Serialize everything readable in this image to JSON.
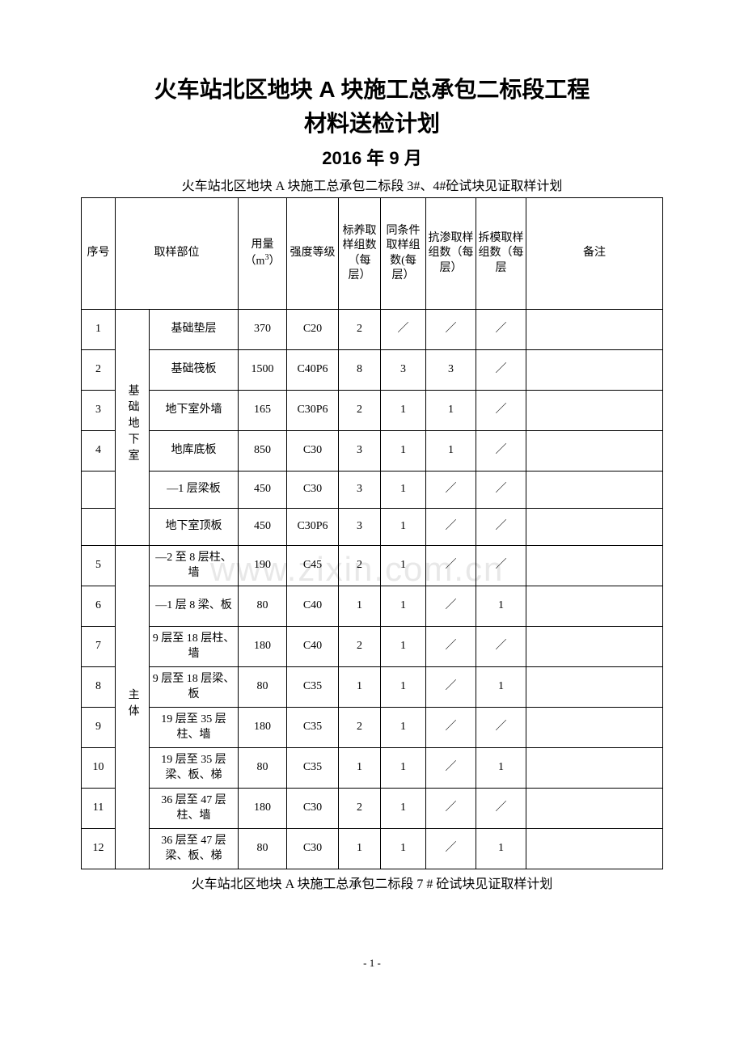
{
  "title_line1": "火车站北区地块 A 块施工总承包二标段工程",
  "title_line2": "材料送检计划",
  "date_text": "2016 年 9 月",
  "subtitle1": "火车站北区地块 A 块施工总承包二标段 3#、4#砼试块见证取样计划",
  "subtitle2": "火车站北区地块 A 块施工总承包二标段 7 # 砼试块见证取样计划",
  "watermark": "www.zixin.com.cn",
  "page_num": "- 1 -",
  "headers": {
    "seq": "序号",
    "location": "取样部位",
    "qty": "用量（m³）",
    "grade": "强度等级",
    "std": "标养取样组数（每层）",
    "same": "同条件取样组数(每层）",
    "perm": "抗渗取样组数（每层）",
    "remove": "拆模取样组数（每层",
    "remark": "备注"
  },
  "group1_label": "基础地下室",
  "group2_label": "主体",
  "rows": [
    {
      "seq": "1",
      "loc": "基础垫层",
      "qty": "370",
      "grade": "C20",
      "std": "2",
      "same": "／",
      "perm": "／",
      "remove": "／",
      "remark": ""
    },
    {
      "seq": "2",
      "loc": "基础筏板",
      "qty": "1500",
      "grade": "C40P6",
      "std": "8",
      "same": "3",
      "perm": "3",
      "remove": "／",
      "remark": ""
    },
    {
      "seq": "3",
      "loc": "地下室外墙",
      "qty": "165",
      "grade": "C30P6",
      "std": "2",
      "same": "1",
      "perm": "1",
      "remove": "／",
      "remark": ""
    },
    {
      "seq": "4",
      "loc": "地库底板",
      "qty": "850",
      "grade": "C30",
      "std": "3",
      "same": "1",
      "perm": "1",
      "remove": "／",
      "remark": ""
    },
    {
      "seq": "",
      "loc": "—1 层梁板",
      "qty": "450",
      "grade": "C30",
      "std": "3",
      "same": "1",
      "perm": "／",
      "remove": "／",
      "remark": ""
    },
    {
      "seq": "",
      "loc": "地下室顶板",
      "qty": "450",
      "grade": "C30P6",
      "std": "3",
      "same": "1",
      "perm": "／",
      "remove": "／",
      "remark": ""
    },
    {
      "seq": "5",
      "loc": "—2 至 8 层柱、墙",
      "qty": "190",
      "grade": "C45",
      "std": "2",
      "same": "1",
      "perm": "／",
      "remove": "／",
      "remark": ""
    },
    {
      "seq": "6",
      "loc": "—1 层 8 梁、板",
      "qty": "80",
      "grade": "C40",
      "std": "1",
      "same": "1",
      "perm": "／",
      "remove": "1",
      "remark": ""
    },
    {
      "seq": "7",
      "loc": "9 层至 18 层柱、墙",
      "qty": "180",
      "grade": "C40",
      "std": "2",
      "same": "1",
      "perm": "／",
      "remove": "／",
      "remark": ""
    },
    {
      "seq": "8",
      "loc": "9 层至 18 层梁、板",
      "qty": "80",
      "grade": "C35",
      "std": "1",
      "same": "1",
      "perm": "／",
      "remove": "1",
      "remark": ""
    },
    {
      "seq": "9",
      "loc": "19 层至 35 层柱、墙",
      "qty": "180",
      "grade": "C35",
      "std": "2",
      "same": "1",
      "perm": "／",
      "remove": "／",
      "remark": ""
    },
    {
      "seq": "10",
      "loc": "19 层至 35 层梁、板、梯",
      "qty": "80",
      "grade": "C35",
      "std": "1",
      "same": "1",
      "perm": "／",
      "remove": "1",
      "remark": ""
    },
    {
      "seq": "11",
      "loc": "36 层至 47 层柱、墙",
      "qty": "180",
      "grade": "C30",
      "std": "2",
      "same": "1",
      "perm": "／",
      "remove": "／",
      "remark": ""
    },
    {
      "seq": "12",
      "loc": "36 层至 47 层梁、板、梯",
      "qty": "80",
      "grade": "C30",
      "std": "1",
      "same": "1",
      "perm": "／",
      "remove": "1",
      "remark": ""
    }
  ]
}
